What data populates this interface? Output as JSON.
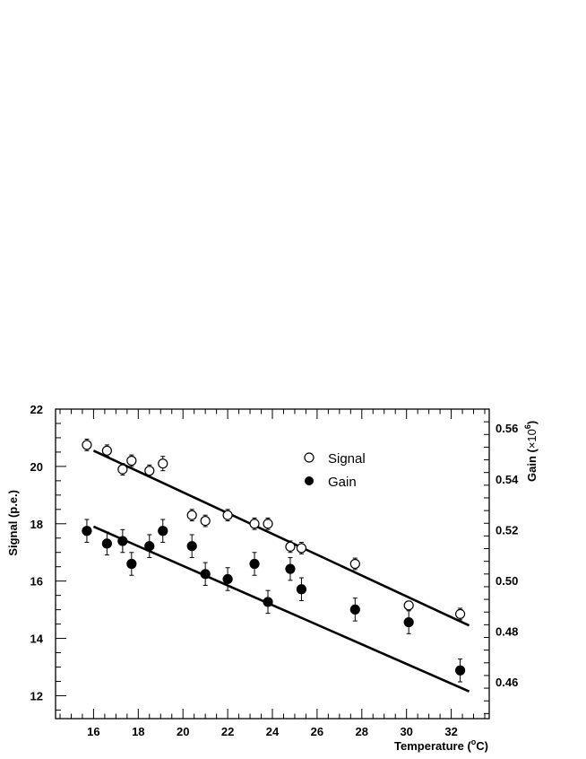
{
  "chart_data": {
    "type": "scatter",
    "title": "",
    "xlabel": "Temperature (",
    "xlabel_unit_sup": "o",
    "xlabel_unit": "C)",
    "ylabel_left": "Signal (p.e.)",
    "ylabel_right": "Gain (",
    "ylabel_right_mult": "×10",
    "ylabel_right_sup": "6",
    "ylabel_right_close": ")",
    "xlim": [
      14.3,
      33.7
    ],
    "ylim_left": [
      11.2,
      22
    ],
    "ylim_right": [
      0.4455,
      0.5675
    ],
    "x_ticks": [
      16,
      18,
      20,
      22,
      24,
      26,
      28,
      30,
      32
    ],
    "y_left_ticks": [
      12,
      14,
      16,
      18,
      20,
      22
    ],
    "y_right_ticks": [
      0.46,
      0.48,
      0.5,
      0.52,
      0.54,
      0.56
    ],
    "x_tick_labels": [
      "16",
      "18",
      "20",
      "22",
      "24",
      "26",
      "28",
      "30",
      "32"
    ],
    "y_left_tick_labels": [
      "12",
      "14",
      "16",
      "18",
      "20",
      "22"
    ],
    "y_right_tick_labels": [
      "0.46",
      "0.48",
      "0.50",
      "0.52",
      "0.54",
      "0.56"
    ],
    "legend_position": "top-center",
    "grid": false,
    "series": [
      {
        "name": "Signal",
        "marker": "open-circle",
        "axis": "left",
        "x": [
          15.7,
          16.6,
          17.3,
          17.7,
          18.5,
          19.1,
          20.4,
          21.0,
          22.0,
          23.2,
          23.8,
          24.8,
          25.3,
          27.7,
          30.1,
          32.4
        ],
        "y": [
          20.75,
          20.55,
          19.9,
          20.2,
          19.85,
          20.1,
          18.3,
          18.1,
          18.3,
          18.0,
          18.0,
          17.2,
          17.15,
          16.6,
          15.15,
          14.85
        ],
        "err": [
          0.2,
          0.2,
          0.2,
          0.2,
          0.2,
          0.25,
          0.2,
          0.2,
          0.2,
          0.2,
          0.2,
          0.2,
          0.2,
          0.2,
          0.15,
          0.2
        ]
      },
      {
        "name": "Gain",
        "marker": "filled-circle",
        "axis": "right",
        "x": [
          15.7,
          16.6,
          17.3,
          17.7,
          18.5,
          19.1,
          20.4,
          21.0,
          22.0,
          23.2,
          23.8,
          24.8,
          25.3,
          27.7,
          30.1,
          32.4
        ],
        "y": [
          0.5195,
          0.5145,
          0.5155,
          0.5065,
          0.5135,
          0.5195,
          0.5135,
          0.5025,
          0.5005,
          0.5065,
          0.4915,
          0.5045,
          0.4965,
          0.4885,
          0.4835,
          0.4645
        ],
        "err": [
          0.0045,
          0.0045,
          0.0045,
          0.0045,
          0.0045,
          0.0045,
          0.0045,
          0.0045,
          0.0045,
          0.0045,
          0.0045,
          0.0045,
          0.0045,
          0.0045,
          0.0045,
          0.0045
        ]
      }
    ],
    "fits": [
      {
        "series": "Signal",
        "axis": "left",
        "x": [
          16.0,
          32.8
        ],
        "y": [
          20.55,
          14.45
        ]
      },
      {
        "series": "Gain",
        "axis": "left",
        "x": [
          16.0,
          32.8
        ],
        "y": [
          17.9,
          12.15
        ]
      }
    ]
  }
}
